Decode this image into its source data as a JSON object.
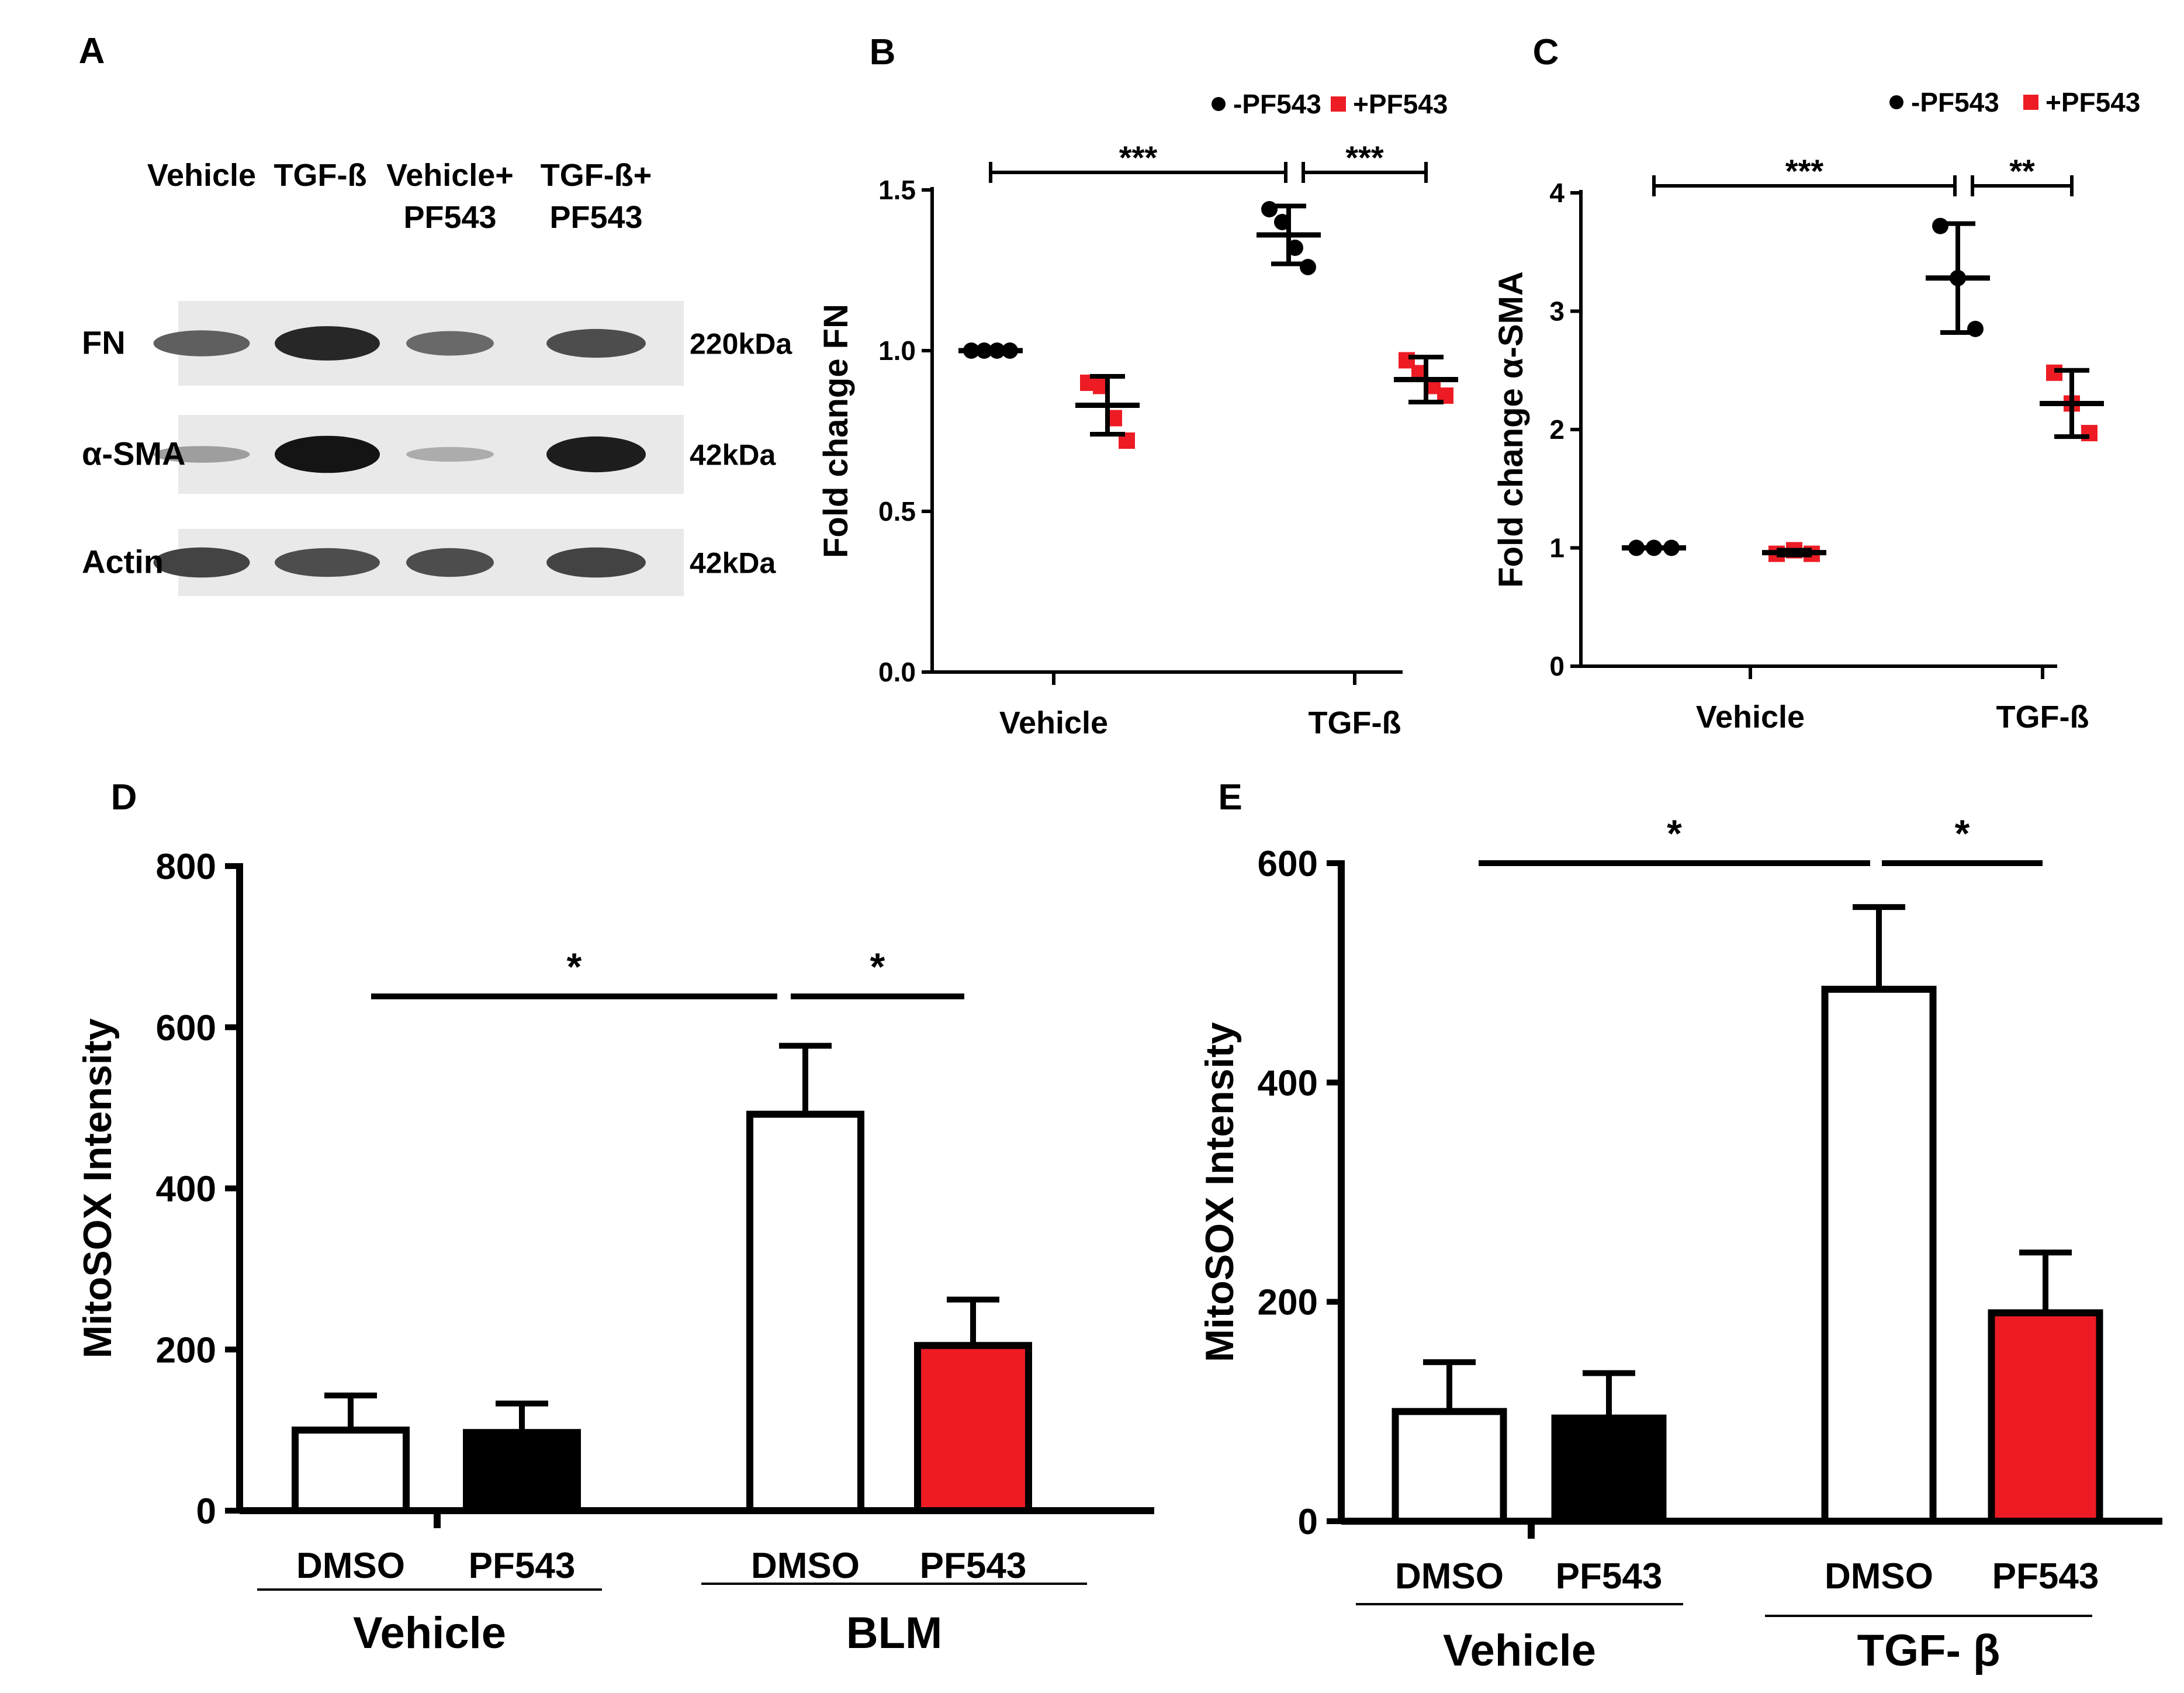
{
  "figure": {
    "panel_labels": [
      "A",
      "B",
      "C",
      "D",
      "E"
    ]
  },
  "colors": {
    "black": "#000000",
    "red": "#ED1C24",
    "white": "#FFFFFF",
    "blot_bg": "#E9E9E9"
  },
  "panel_a": {
    "label": "A",
    "lanes": [
      "Vehicle",
      "TGF-ß",
      "Vehicle+",
      "TGF-ß+"
    ],
    "lanes_line2": [
      "",
      "",
      "PF543",
      "PF543"
    ],
    "rows": [
      {
        "name": "FN",
        "size": "220kDa",
        "intensities": [
          0.55,
          0.85,
          0.5,
          0.65
        ]
      },
      {
        "name": "α-SMA",
        "size": "42kDa",
        "intensities": [
          0.22,
          0.95,
          0.15,
          0.9
        ]
      },
      {
        "name": "Actin",
        "size": "42kDa",
        "intensities": [
          0.7,
          0.65,
          0.65,
          0.7
        ]
      }
    ]
  },
  "chart_data": [
    {
      "panel": "B",
      "type": "scatter",
      "title": "",
      "ylabel": "Fold change FN",
      "xlabel": "",
      "categories": [
        "Vehicle",
        "TGF-ß"
      ],
      "ylim": [
        0,
        1.5
      ],
      "yticks": [
        "0.0",
        "0.5",
        "1.0",
        "1.5"
      ],
      "legend": [
        {
          "name": "-PF543",
          "color": "#000000",
          "marker": "circle"
        },
        {
          "name": "+PF543",
          "color": "#ED1C24",
          "marker": "square"
        }
      ],
      "series": [
        {
          "name": "-PF543",
          "points": {
            "Vehicle": [
              1.0,
              1.0,
              1.0,
              1.0
            ],
            "TGF-ß": [
              1.44,
              1.4,
              1.32,
              1.26
            ]
          },
          "mean": {
            "Vehicle": 1.0,
            "TGF-ß": 1.36
          },
          "sd": {
            "Vehicle": 0,
            "TGF-ß": 0.09
          }
        },
        {
          "name": "+PF543",
          "points": {
            "Vehicle": [
              0.9,
              0.89,
              0.79,
              0.72
            ],
            "TGF-ß": [
              0.97,
              0.93,
              0.89,
              0.86
            ]
          },
          "mean": {
            "Vehicle": 0.83,
            "TGF-ß": 0.91
          },
          "sd": {
            "Vehicle": 0.09,
            "TGF-ß": 0.07
          }
        }
      ],
      "significance": [
        {
          "label": "***",
          "from": 0,
          "to": 2,
          "y": 1.55
        },
        {
          "label": "***",
          "from": 2,
          "to": 3,
          "y": 1.55
        }
      ]
    },
    {
      "panel": "C",
      "type": "scatter",
      "title": "",
      "ylabel": "Fold change α-SMA",
      "xlabel": "",
      "categories": [
        "Vehicle",
        "TGF-ß"
      ],
      "ylim": [
        0,
        4
      ],
      "yticks": [
        "0",
        "1",
        "2",
        "3",
        "4"
      ],
      "legend": [
        {
          "name": "-PF543",
          "color": "#000000",
          "marker": "circle"
        },
        {
          "name": "+PF543",
          "color": "#ED1C24",
          "marker": "square"
        }
      ],
      "series": [
        {
          "name": "-PF543",
          "points": {
            "Vehicle": [
              1.0,
              1.0,
              1.0
            ],
            "TGF-ß": [
              3.72,
              3.28,
              2.85
            ]
          },
          "mean": {
            "Vehicle": 1.0,
            "TGF-ß": 3.28
          },
          "sd": {
            "Vehicle": 0,
            "TGF-ß": 0.46
          }
        },
        {
          "name": "+PF543",
          "points": {
            "Vehicle": [
              0.95,
              0.98,
              0.95
            ],
            "TGF-ß": [
              2.48,
              2.22,
              1.97
            ]
          },
          "mean": {
            "Vehicle": 0.96,
            "TGF-ß": 2.22
          },
          "sd": {
            "Vehicle": 0.02,
            "TGF-ß": 0.28
          }
        }
      ],
      "significance": [
        {
          "label": "***",
          "from": 0,
          "to": 2,
          "y": 4.1
        },
        {
          "label": "**",
          "from": 2,
          "to": 3,
          "y": 4.1
        }
      ]
    },
    {
      "panel": "D",
      "type": "bar",
      "title": "",
      "ylabel": "MitoSOX Intensity",
      "xlabel": "",
      "categories": [
        "DMSO",
        "PF543",
        "DMSO",
        "PF543"
      ],
      "groups": [
        "Vehicle",
        "BLM"
      ],
      "values": [
        100,
        97,
        492,
        205
      ],
      "errors": [
        43,
        36,
        85,
        57
      ],
      "fills": [
        "#FFFFFF",
        "#000000",
        "#FFFFFF",
        "#ED1C24"
      ],
      "ylim": [
        0,
        800
      ],
      "yticks": [
        "0",
        "200",
        "400",
        "600",
        "800"
      ],
      "significance": [
        {
          "label": "*",
          "from": 0,
          "to": 2,
          "y": 635
        },
        {
          "label": "*",
          "from": 2,
          "to": 3,
          "y": 635
        }
      ]
    },
    {
      "panel": "E",
      "type": "bar",
      "title": "",
      "ylabel": "MitoSOX Intensity",
      "xlabel": "",
      "categories": [
        "DMSO",
        "PF543",
        "DMSO",
        "PF543"
      ],
      "groups": [
        "Vehicle",
        "TGF- β"
      ],
      "values": [
        100,
        94,
        485,
        190
      ],
      "errors": [
        45,
        41,
        75,
        55
      ],
      "fills": [
        "#FFFFFF",
        "#000000",
        "#FFFFFF",
        "#ED1C24"
      ],
      "ylim": [
        0,
        600
      ],
      "yticks": [
        "0",
        "200",
        "400",
        "600"
      ],
      "significance": [
        {
          "label": "*",
          "from": 0,
          "to": 2,
          "y": 600
        },
        {
          "label": "*",
          "from": 2,
          "to": 3,
          "y": 600
        }
      ]
    }
  ]
}
